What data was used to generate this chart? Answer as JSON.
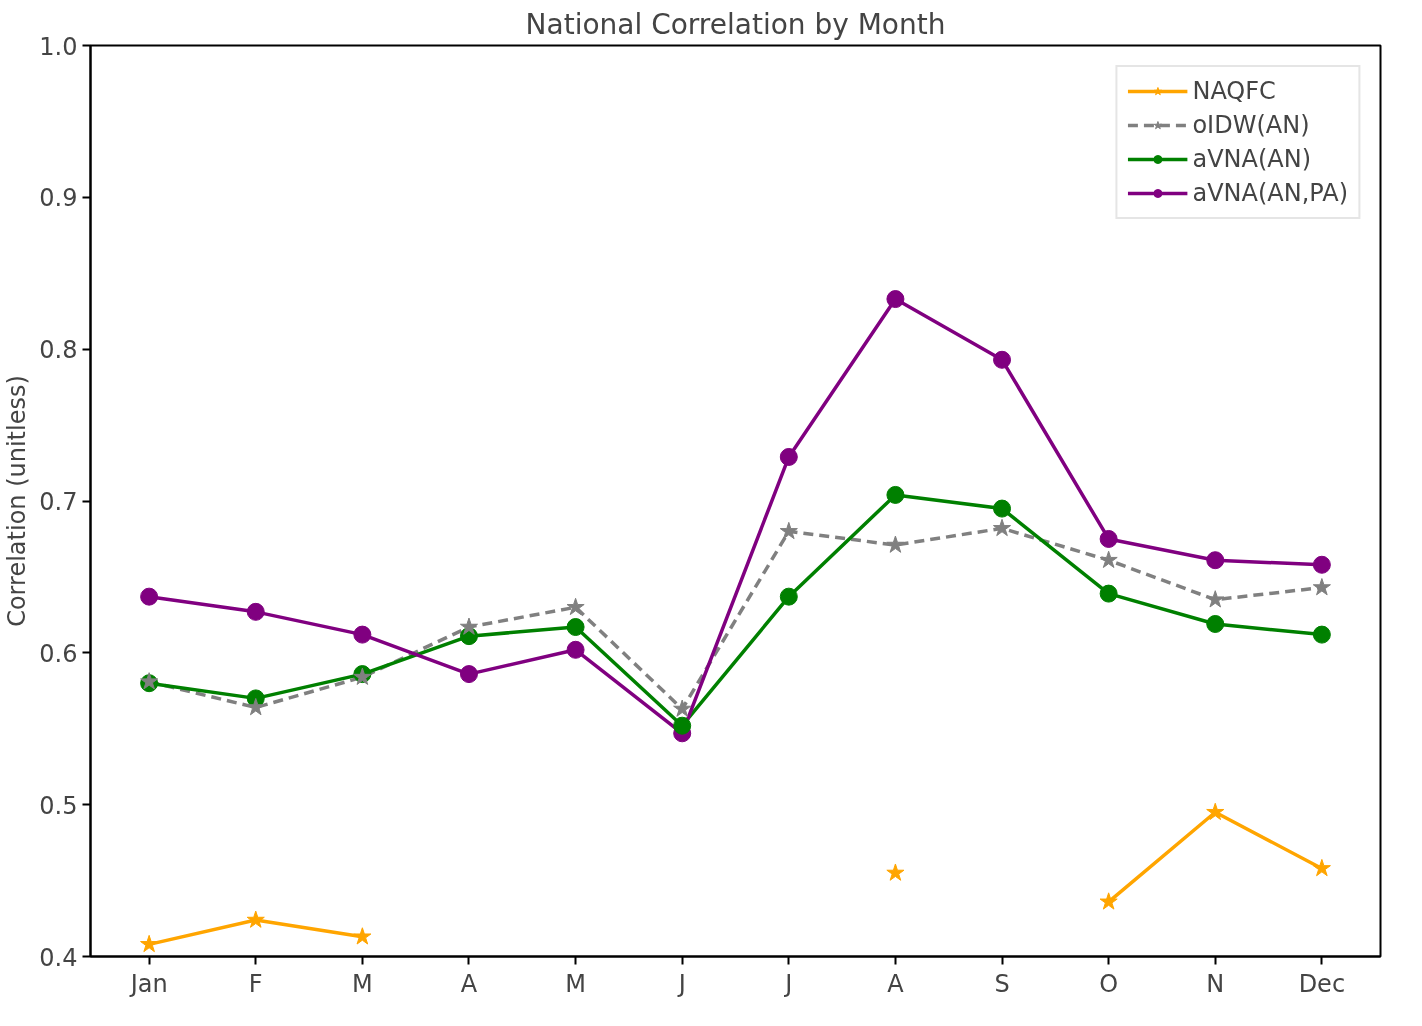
{
  "chart_data": {
    "type": "line",
    "title": "National Correlation by Month",
    "ylabel": "Correlation (unitless)",
    "categories": [
      "Jan",
      "F",
      "M",
      "A",
      "M",
      "J",
      "J",
      "A",
      "S",
      "O",
      "N",
      "Dec"
    ],
    "ylim": [
      0.4,
      1.0
    ],
    "yticks": [
      0.4,
      0.5,
      0.6,
      0.7,
      0.8,
      0.9,
      {
        "value": 1.0,
        "label": "1.0"
      }
    ],
    "grid": false,
    "legend": "top right",
    "series": [
      {
        "name": "NAQFC",
        "color": "#ffa500",
        "marker": "star",
        "line_style": "solid",
        "values": [
          0.408,
          0.424,
          0.413,
          null,
          null,
          null,
          null,
          0.455,
          null,
          0.436,
          0.495,
          0.458
        ]
      },
      {
        "name": "oIDW(AN)",
        "color": "#808080",
        "marker": "star",
        "line_style": "dashed",
        "values": [
          0.581,
          0.564,
          0.584,
          0.617,
          0.63,
          0.563,
          0.68,
          0.671,
          0.682,
          0.661,
          0.635,
          0.643
        ]
      },
      {
        "name": "aVNA(AN)",
        "color": "#008000",
        "marker": "circle",
        "line_style": "solid",
        "values": [
          0.58,
          0.57,
          0.586,
          0.611,
          0.617,
          0.552,
          0.637,
          0.704,
          0.695,
          0.639,
          0.619,
          0.612
        ]
      },
      {
        "name": "aVNA(AN,PA)",
        "color": "#800080",
        "marker": "circle",
        "line_style": "solid",
        "values": [
          0.637,
          0.627,
          0.612,
          0.586,
          0.602,
          0.547,
          0.729,
          0.833,
          0.793,
          0.675,
          0.661,
          0.658
        ]
      }
    ]
  }
}
